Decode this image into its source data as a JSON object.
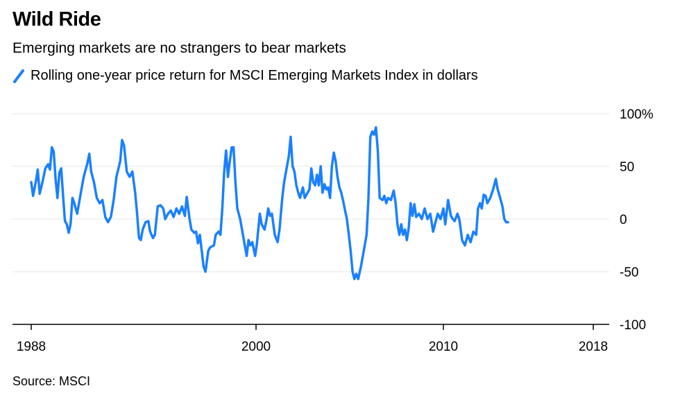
{
  "header": {
    "title": "Wild Ride",
    "subtitle": "Emerging markets are no strangers to bear markets"
  },
  "legend": {
    "label": "Rolling one-year price return for MSCI Emerging Markets Index in dollars"
  },
  "footer": {
    "source": "Source: MSCI"
  },
  "colors": {
    "line": "#1a80ff",
    "grid": "#e6e6e6",
    "axis": "#000000"
  },
  "chart_data": {
    "type": "line",
    "title": "Wild Ride",
    "subtitle": "Emerging markets are no strangers to bear markets",
    "xlabel": "",
    "ylabel": "",
    "xlim": [
      1988,
      2018
    ],
    "ylim": [
      -100,
      100
    ],
    "x_ticks": [
      {
        "value": 1988,
        "label": "1988"
      },
      {
        "value": 2000,
        "label": "2000"
      },
      {
        "value": 2010,
        "label": "2010"
      },
      {
        "value": 2018,
        "label": "2018"
      }
    ],
    "y_ticks": [
      {
        "value": 100,
        "label": "100%"
      },
      {
        "value": 50,
        "label": "50"
      },
      {
        "value": 0,
        "label": "0"
      },
      {
        "value": -50,
        "label": "-50"
      },
      {
        "value": -100,
        "label": "-100"
      }
    ],
    "grid": true,
    "legend_position": "top-left",
    "series": [
      {
        "name": "Rolling one-year price return for MSCI Emerging Markets Index in dollars",
        "points": [
          [
            1988.0,
            35
          ],
          [
            1988.1,
            22
          ],
          [
            1988.25,
            36
          ],
          [
            1988.35,
            47
          ],
          [
            1988.45,
            24
          ],
          [
            1988.6,
            35
          ],
          [
            1988.75,
            48
          ],
          [
            1988.9,
            52
          ],
          [
            1989.0,
            47
          ],
          [
            1989.1,
            68
          ],
          [
            1989.2,
            64
          ],
          [
            1989.3,
            38
          ],
          [
            1989.4,
            20
          ],
          [
            1989.5,
            44
          ],
          [
            1989.6,
            48
          ],
          [
            1989.7,
            22
          ],
          [
            1989.8,
            -2
          ],
          [
            1989.9,
            -5
          ],
          [
            1990.0,
            -13
          ],
          [
            1990.1,
            -5
          ],
          [
            1990.2,
            20
          ],
          [
            1990.3,
            15
          ],
          [
            1990.45,
            5
          ],
          [
            1990.6,
            20
          ],
          [
            1990.8,
            40
          ],
          [
            1991.0,
            53
          ],
          [
            1991.1,
            62
          ],
          [
            1991.2,
            45
          ],
          [
            1991.35,
            35
          ],
          [
            1991.5,
            20
          ],
          [
            1991.65,
            15
          ],
          [
            1991.8,
            18
          ],
          [
            1991.95,
            2
          ],
          [
            1992.1,
            -3
          ],
          [
            1992.25,
            2
          ],
          [
            1992.4,
            18
          ],
          [
            1992.55,
            40
          ],
          [
            1992.75,
            55
          ],
          [
            1992.85,
            75
          ],
          [
            1992.95,
            70
          ],
          [
            1993.1,
            45
          ],
          [
            1993.25,
            40
          ],
          [
            1993.4,
            45
          ],
          [
            1993.55,
            25
          ],
          [
            1993.65,
            5
          ],
          [
            1993.75,
            -18
          ],
          [
            1993.85,
            -20
          ],
          [
            1993.95,
            -10
          ],
          [
            1994.1,
            -3
          ],
          [
            1994.25,
            -2
          ],
          [
            1994.35,
            -12
          ],
          [
            1994.5,
            -18
          ],
          [
            1994.6,
            -15
          ],
          [
            1994.75,
            12
          ],
          [
            1994.9,
            13
          ],
          [
            1995.05,
            10
          ],
          [
            1995.15,
            0
          ],
          [
            1995.3,
            5
          ],
          [
            1995.45,
            8
          ],
          [
            1995.6,
            2
          ],
          [
            1995.75,
            10
          ],
          [
            1995.9,
            5
          ],
          [
            1996.05,
            12
          ],
          [
            1996.2,
            3
          ],
          [
            1996.3,
            21
          ],
          [
            1996.45,
            0
          ],
          [
            1996.55,
            -10
          ],
          [
            1996.7,
            -13
          ],
          [
            1996.8,
            -12
          ],
          [
            1996.9,
            -23
          ],
          [
            1997.0,
            -15
          ],
          [
            1997.2,
            -45
          ],
          [
            1997.3,
            -50
          ],
          [
            1997.45,
            -30
          ],
          [
            1997.55,
            -27
          ],
          [
            1997.75,
            -25
          ],
          [
            1997.85,
            -15
          ],
          [
            1998.0,
            -12
          ],
          [
            1998.1,
            -15
          ],
          [
            1998.2,
            10
          ],
          [
            1998.3,
            45
          ],
          [
            1998.4,
            65
          ],
          [
            1998.5,
            40
          ],
          [
            1998.6,
            55
          ],
          [
            1998.7,
            68
          ],
          [
            1998.8,
            68
          ],
          [
            1998.9,
            35
          ],
          [
            1999.0,
            10
          ],
          [
            1999.15,
            0
          ],
          [
            1999.3,
            -15
          ],
          [
            1999.4,
            -25
          ],
          [
            1999.5,
            -35
          ],
          [
            1999.6,
            -20
          ],
          [
            1999.7,
            -25
          ],
          [
            1999.8,
            -22
          ],
          [
            1999.95,
            -35
          ],
          [
            2000.05,
            -23
          ],
          [
            2000.2,
            5
          ],
          [
            2000.3,
            -5
          ],
          [
            2000.45,
            -10
          ],
          [
            2000.55,
            -2
          ],
          [
            2000.65,
            10
          ],
          [
            2000.75,
            3
          ],
          [
            2000.85,
            5
          ],
          [
            2001.0,
            -15
          ],
          [
            2001.15,
            -22
          ],
          [
            2001.25,
            -10
          ],
          [
            2001.4,
            20
          ],
          [
            2001.5,
            35
          ],
          [
            2001.6,
            45
          ],
          [
            2001.75,
            60
          ],
          [
            2001.85,
            78
          ],
          [
            2001.95,
            50
          ],
          [
            2002.05,
            45
          ],
          [
            2002.15,
            32
          ],
          [
            2002.25,
            25
          ],
          [
            2002.35,
            20
          ],
          [
            2002.5,
            30
          ],
          [
            2002.6,
            20
          ],
          [
            2002.75,
            25
          ],
          [
            2002.85,
            28
          ],
          [
            2002.95,
            48
          ],
          [
            2003.05,
            35
          ],
          [
            2003.15,
            32
          ],
          [
            2003.25,
            42
          ],
          [
            2003.35,
            32
          ],
          [
            2003.45,
            50
          ],
          [
            2003.55,
            25
          ],
          [
            2003.65,
            33
          ],
          [
            2003.75,
            28
          ],
          [
            2003.85,
            30
          ],
          [
            2003.95,
            20
          ],
          [
            2004.05,
            50
          ],
          [
            2004.15,
            63
          ],
          [
            2004.25,
            55
          ],
          [
            2004.35,
            40
          ],
          [
            2004.45,
            30
          ],
          [
            2004.55,
            25
          ],
          [
            2004.65,
            17
          ],
          [
            2004.75,
            8
          ],
          [
            2004.85,
            0
          ],
          [
            2004.95,
            -15
          ],
          [
            2005.05,
            -30
          ],
          [
            2005.15,
            -50
          ],
          [
            2005.25,
            -57
          ],
          [
            2005.35,
            -52
          ],
          [
            2005.45,
            -57
          ],
          [
            2005.6,
            -45
          ],
          [
            2005.75,
            -30
          ],
          [
            2005.9,
            -15
          ],
          [
            2006.0,
            20
          ],
          [
            2006.1,
            78
          ],
          [
            2006.2,
            83
          ],
          [
            2006.3,
            80
          ],
          [
            2006.4,
            87
          ],
          [
            2006.5,
            65
          ],
          [
            2006.6,
            20
          ],
          [
            2006.75,
            18
          ],
          [
            2006.85,
            22
          ],
          [
            2006.95,
            15
          ],
          [
            2007.05,
            20
          ],
          [
            2007.2,
            18
          ],
          [
            2007.35,
            27
          ],
          [
            2007.45,
            15
          ],
          [
            2007.55,
            -5
          ],
          [
            2007.65,
            -15
          ],
          [
            2007.75,
            -5
          ],
          [
            2007.85,
            -15
          ],
          [
            2007.95,
            -10
          ],
          [
            2008.05,
            -20
          ],
          [
            2008.15,
            -8
          ],
          [
            2008.25,
            15
          ],
          [
            2008.35,
            3
          ],
          [
            2008.45,
            14
          ],
          [
            2008.55,
            2
          ],
          [
            2008.7,
            5
          ],
          [
            2008.85,
            0
          ],
          [
            2009.0,
            10
          ],
          [
            2009.15,
            0
          ],
          [
            2009.3,
            5
          ],
          [
            2009.45,
            -12
          ],
          [
            2009.55,
            -5
          ],
          [
            2009.7,
            5
          ],
          [
            2009.85,
            0
          ],
          [
            2010.0,
            10
          ],
          [
            2010.1,
            -5
          ],
          [
            2010.25,
            18
          ],
          [
            2010.4,
            3
          ],
          [
            2010.5,
            0
          ],
          [
            2010.6,
            -2
          ],
          [
            2010.75,
            5
          ],
          [
            2010.85,
            0
          ],
          [
            2011.0,
            -20
          ],
          [
            2011.15,
            -25
          ],
          [
            2011.3,
            -15
          ],
          [
            2011.45,
            -22
          ],
          [
            2011.6,
            -12
          ],
          [
            2011.75,
            -15
          ],
          [
            2011.85,
            10
          ],
          [
            2011.95,
            15
          ],
          [
            2012.05,
            10
          ],
          [
            2012.15,
            23
          ],
          [
            2012.25,
            22
          ],
          [
            2012.35,
            15
          ],
          [
            2012.5,
            20
          ],
          [
            2012.65,
            28
          ],
          [
            2012.8,
            38
          ],
          [
            2012.9,
            28
          ],
          [
            2013.0,
            22
          ],
          [
            2013.15,
            12
          ],
          [
            2013.25,
            0
          ],
          [
            2013.35,
            -3
          ],
          [
            2013.45,
            -3
          ]
        ]
      }
    ]
  }
}
